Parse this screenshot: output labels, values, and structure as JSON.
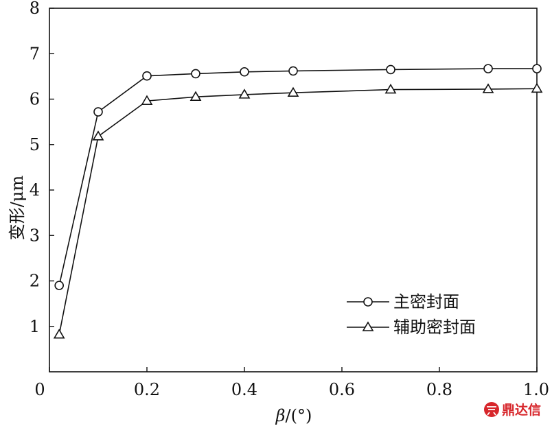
{
  "chart_data": {
    "type": "line",
    "x": [
      0.02,
      0.1,
      0.2,
      0.3,
      0.4,
      0.5,
      0.7,
      0.9,
      1.0
    ],
    "series": [
      {
        "name": "主密封面",
        "marker": "circle",
        "values": [
          1.9,
          5.72,
          6.51,
          6.56,
          6.6,
          6.62,
          6.65,
          6.67,
          6.67
        ]
      },
      {
        "name": "辅助密封面",
        "marker": "triangle",
        "values": [
          0.82,
          5.18,
          5.96,
          6.05,
          6.1,
          6.14,
          6.21,
          6.22,
          6.23
        ]
      }
    ],
    "xlabel_symbol": "β",
    "xlabel_unit": "/(°)",
    "ylabel": "变形/μm",
    "xlim": [
      0,
      1.0
    ],
    "ylim": [
      0,
      8
    ],
    "xticks": [
      "0",
      "0.2",
      "0.4",
      "0.6",
      "0.8",
      "1.0"
    ],
    "xtick_values": [
      0,
      0.2,
      0.4,
      0.6,
      0.8,
      1.0
    ],
    "yticks": [
      "1",
      "2",
      "3",
      "4",
      "5",
      "6",
      "7",
      "8"
    ],
    "ytick_values": [
      1,
      2,
      3,
      4,
      5,
      6,
      7,
      8
    ],
    "grid": false,
    "legend_position": "bottom-right",
    "line_color": "#111111"
  },
  "watermark": {
    "text": "鼎达信",
    "color": "#d7262b"
  }
}
